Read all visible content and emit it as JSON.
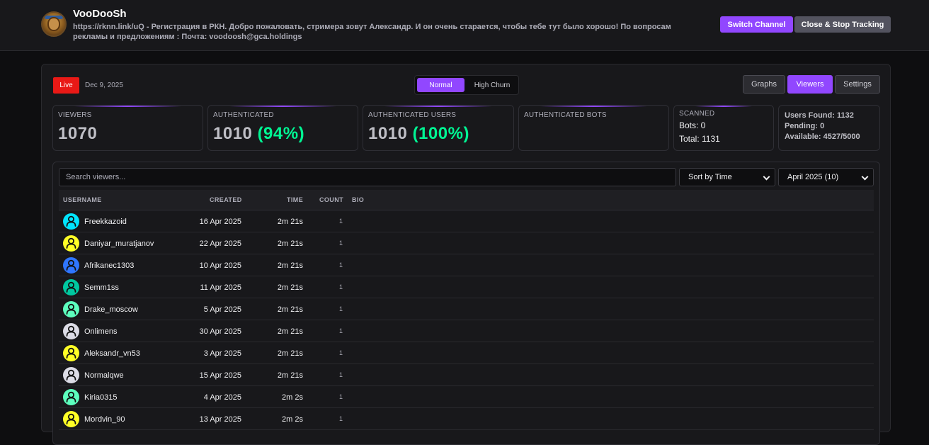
{
  "header": {
    "channel_name": "VooDooSh",
    "description": "https://rknn.link/uQ - Регистрация в РКН. Добро пожаловать, стримера зовут Александр. И он очень старается, чтобы тебе тут было хорошо! По вопросам рекламы и предложениям : Почта: voodoosh@gca.holdings",
    "switch_label": "Switch Channel",
    "close_label": "Close & Stop Tracking"
  },
  "toolbar": {
    "live_label": "Live",
    "date": "Dec 9, 2025",
    "mode_normal": "Normal",
    "mode_churn": "High Churn",
    "tab_graphs": "Graphs",
    "tab_viewers": "Viewers",
    "tab_settings": "Settings"
  },
  "stats": {
    "viewers_label": "VIEWERS",
    "viewers_value": "1070",
    "auth_label": "AUTHENTICATED",
    "auth_value": "1010",
    "auth_pct": "(94%)",
    "auth_users_label": "AUTHENTICATED USERS",
    "auth_users_value": "1010",
    "auth_users_pct": "(100%)",
    "auth_bots_label": "AUTHENTICATED BOTS",
    "scanned_label": "SCANNED",
    "scanned_bots": "Bots: 0",
    "scanned_total": "Total: 1131",
    "users_found": "Users Found: 1132",
    "pending": "Pending: 0",
    "available": "Available: 4527/5000"
  },
  "list": {
    "search_placeholder": "Search viewers...",
    "sort_value": "Sort by Time",
    "month_value": "April 2025 (10)",
    "columns": {
      "username": "USERNAME",
      "created": "CREATED",
      "time": "TIME",
      "count": "COUNT",
      "bio": "BIO"
    },
    "rows": [
      {
        "username": "Freekkazoid",
        "created": "16 Apr 2025",
        "time": "2m 21s",
        "count": "1",
        "avatar_color": "#00e5ff"
      },
      {
        "username": "Daniyar_muratjanov",
        "created": "22 Apr 2025",
        "time": "2m 21s",
        "count": "1",
        "avatar_color": "#ffff26"
      },
      {
        "username": "Afrikanec1303",
        "created": "10 Apr 2025",
        "time": "2m 21s",
        "count": "1",
        "avatar_color": "#2f76ff"
      },
      {
        "username": "Semm1ss",
        "created": "11 Apr 2025",
        "time": "2m 21s",
        "count": "1",
        "avatar_color": "#00c8a0"
      },
      {
        "username": "Drake_moscow",
        "created": "5 Apr 2025",
        "time": "2m 21s",
        "count": "1",
        "avatar_color": "#5cffbe"
      },
      {
        "username": "Onlimens",
        "created": "30 Apr 2025",
        "time": "2m 21s",
        "count": "1",
        "avatar_color": "#dcdce6"
      },
      {
        "username": "Aleksandr_vn53",
        "created": "3 Apr 2025",
        "time": "2m 21s",
        "count": "1",
        "avatar_color": "#ffff26"
      },
      {
        "username": "Normalqwe",
        "created": "15 Apr 2025",
        "time": "2m 21s",
        "count": "1",
        "avatar_color": "#dcdce6"
      },
      {
        "username": "Kiria0315",
        "created": "4 Apr 2025",
        "time": "2m 2s",
        "count": "1",
        "avatar_color": "#5cffbe"
      },
      {
        "username": "Mordvin_90",
        "created": "13 Apr 2025",
        "time": "2m 2s",
        "count": "1",
        "avatar_color": "#ffff26"
      }
    ]
  }
}
